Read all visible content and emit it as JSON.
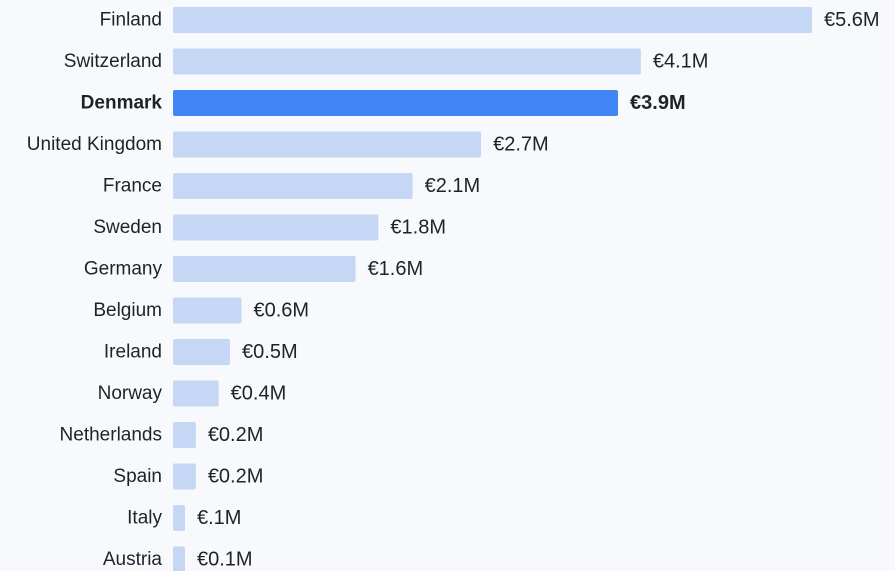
{
  "chart_data": {
    "type": "bar",
    "orientation": "horizontal",
    "categories": [
      "Finland",
      "Switzerland",
      "Denmark",
      "United Kingdom",
      "France",
      "Sweden",
      "Germany",
      "Belgium",
      "Ireland",
      "Norway",
      "Netherlands",
      "Spain",
      "Italy",
      "Austria"
    ],
    "values": [
      5.6,
      4.1,
      3.9,
      2.7,
      2.1,
      1.8,
      1.6,
      0.6,
      0.5,
      0.4,
      0.2,
      0.2,
      0.1,
      0.1
    ],
    "value_labels": [
      "€5.6M",
      "€4.1M",
      "€3.9M",
      "€2.7M",
      "€2.1M",
      "€1.8M",
      "€1.6M",
      "€0.6M",
      "€0.5M",
      "€0.4M",
      "€0.2M",
      "€0.2M",
      "€.1M",
      "€0.1M"
    ],
    "unit": "€M",
    "highlight": "Denmark",
    "xlim": [
      0,
      5.6
    ],
    "grid": false,
    "title": "",
    "xlabel": "",
    "ylabel": "",
    "colors": {
      "bar": "#c6d6f5",
      "highlight": "#4285f4",
      "text": "#1f2328",
      "background": "#f7f9fd"
    }
  }
}
